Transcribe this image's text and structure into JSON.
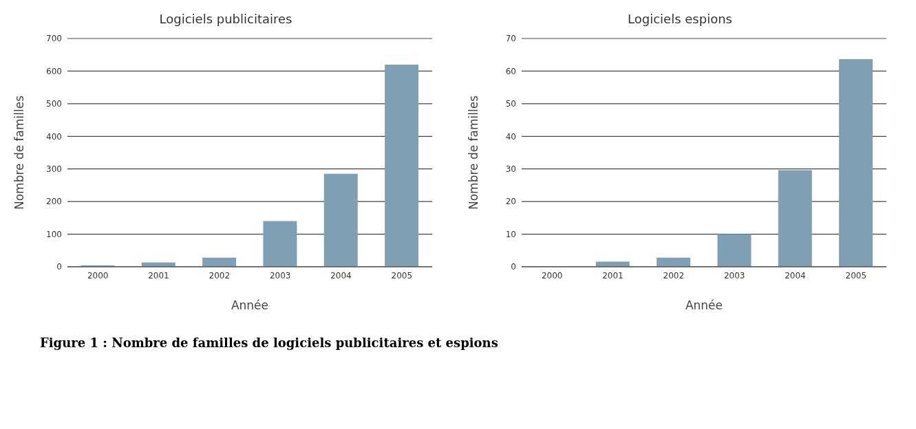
{
  "chart_data": [
    {
      "type": "bar",
      "title": "Logiciels publicitaires",
      "xlabel": "Année",
      "ylabel": "Nombre de familles",
      "categories": [
        "2000",
        "2001",
        "2002",
        "2003",
        "2004",
        "2005"
      ],
      "values": [
        4,
        13,
        28,
        140,
        285,
        620
      ],
      "color": "#7f9fb5",
      "ylim": [
        0,
        700
      ],
      "yticks": [
        0,
        100,
        200,
        300,
        400,
        500,
        600,
        700
      ],
      "grid": "y",
      "legend": false,
      "annotations": [
        "Figure 1 : Nombre de familles de logiciels publicitaires et espions"
      ]
    },
    {
      "type": "bar",
      "title": "Logiciels espions",
      "xlabel": "Année",
      "ylabel": "Nombre de familles",
      "categories": [
        "2000",
        "2001",
        "2002",
        "2003",
        "2004",
        "2005"
      ],
      "values": [
        0,
        1.6,
        2.8,
        10,
        29.6,
        63.7
      ],
      "color": "#7f9fb5",
      "ylim": [
        0,
        70
      ],
      "yticks": [
        0,
        10,
        20,
        30,
        40,
        50,
        60,
        70
      ],
      "grid": "y",
      "legend": false
    }
  ]
}
